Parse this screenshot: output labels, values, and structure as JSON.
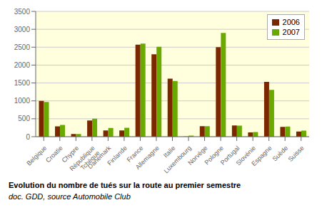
{
  "chart_data": {
    "type": "bar",
    "title": "Evolution du nombre de tués sur la route au premier semestre",
    "subtitle": "doc. GDD, source Automobile Club",
    "categories": [
      "Belgique",
      "Croatie",
      "Chypre",
      "République\nTchèque",
      "Danemark",
      "Finlande",
      "France",
      "Allemagne",
      "Italie",
      "Luxembourg",
      "Norvège",
      "Pologne",
      "Portugal",
      "Slovénie",
      "Espagne",
      "Suède",
      "Suisse"
    ],
    "series": [
      {
        "name": "2006",
        "color": "#7B2800",
        "values": [
          1000,
          290,
          75,
          450,
          175,
          175,
          2570,
          2300,
          1620,
          5,
          295,
          2500,
          315,
          120,
          1530,
          275,
          145
        ]
      },
      {
        "name": "2007",
        "color": "#6AAA00",
        "values": [
          970,
          330,
          75,
          500,
          245,
          250,
          2600,
          2510,
          1555,
          30,
          295,
          2900,
          310,
          130,
          1310,
          285,
          170
        ]
      }
    ],
    "ylim": [
      0,
      3500
    ],
    "yticks": [
      0,
      500,
      1000,
      1500,
      2000,
      2500,
      3000,
      3500
    ],
    "grid": true,
    "legend": "upper right"
  }
}
